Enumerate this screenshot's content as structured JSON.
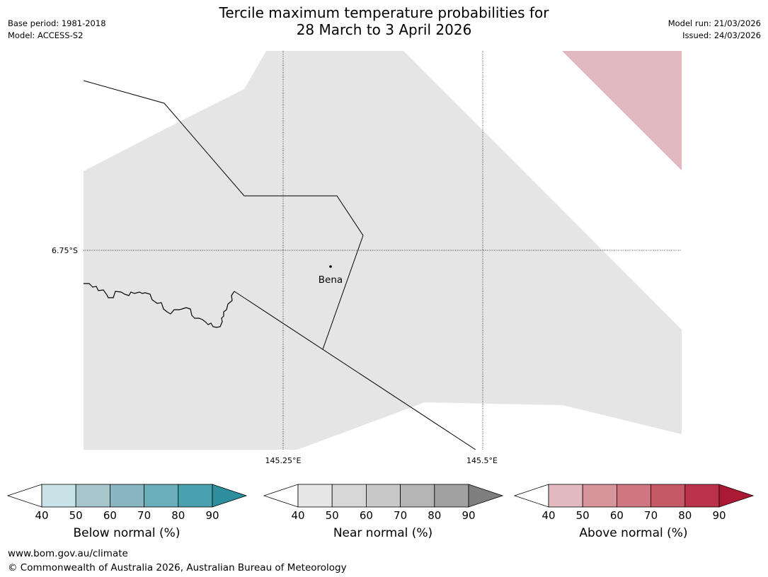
{
  "header": {
    "title_line1": "Tercile maximum temperature probabilities for",
    "title_line2": "28 March to 3 April 2026",
    "base_period": "Base period: 1981-2018",
    "model": "Model: ACCESS-S2",
    "model_run": "Model run: 21/03/2026",
    "issued": "Issued: 24/03/2026"
  },
  "map": {
    "latitude_labels": [
      "6.75°S"
    ],
    "longitude_labels": [
      "145.25°E",
      "145.5°E"
    ],
    "place_label": "Bena",
    "colors": {
      "near_normal_fill": "#e5e5e5",
      "above_normal_fill": "#e1b9be",
      "line": "#000000"
    }
  },
  "colorbars": [
    {
      "label": "Below normal (%)",
      "ticks": [
        "40",
        "50",
        "60",
        "70",
        "80",
        "90"
      ],
      "colors": [
        "#ffffff",
        "#c8e2e7",
        "#a6c6cb",
        "#88b5c1",
        "#6baebb",
        "#48a1af",
        "#2e8e9e"
      ]
    },
    {
      "label": "Near normal (%)",
      "ticks": [
        "40",
        "50",
        "60",
        "70",
        "80",
        "90"
      ],
      "colors": [
        "#ffffff",
        "#e6e6e6",
        "#d7d7d7",
        "#c8c8c8",
        "#b5b5b5",
        "#a1a1a1",
        "#7f7f7f"
      ]
    },
    {
      "label": "Above normal (%)",
      "ticks": [
        "40",
        "50",
        "60",
        "70",
        "80",
        "90"
      ],
      "colors": [
        "#ffffff",
        "#e1b9be",
        "#d7949b",
        "#ce7780",
        "#c45a66",
        "#bb334b",
        "#aa1a35"
      ]
    }
  ],
  "footer": {
    "url": "www.bom.gov.au/climate",
    "copyright": "© Commonwealth of Australia 2026, Australian Bureau of Meteorology"
  }
}
